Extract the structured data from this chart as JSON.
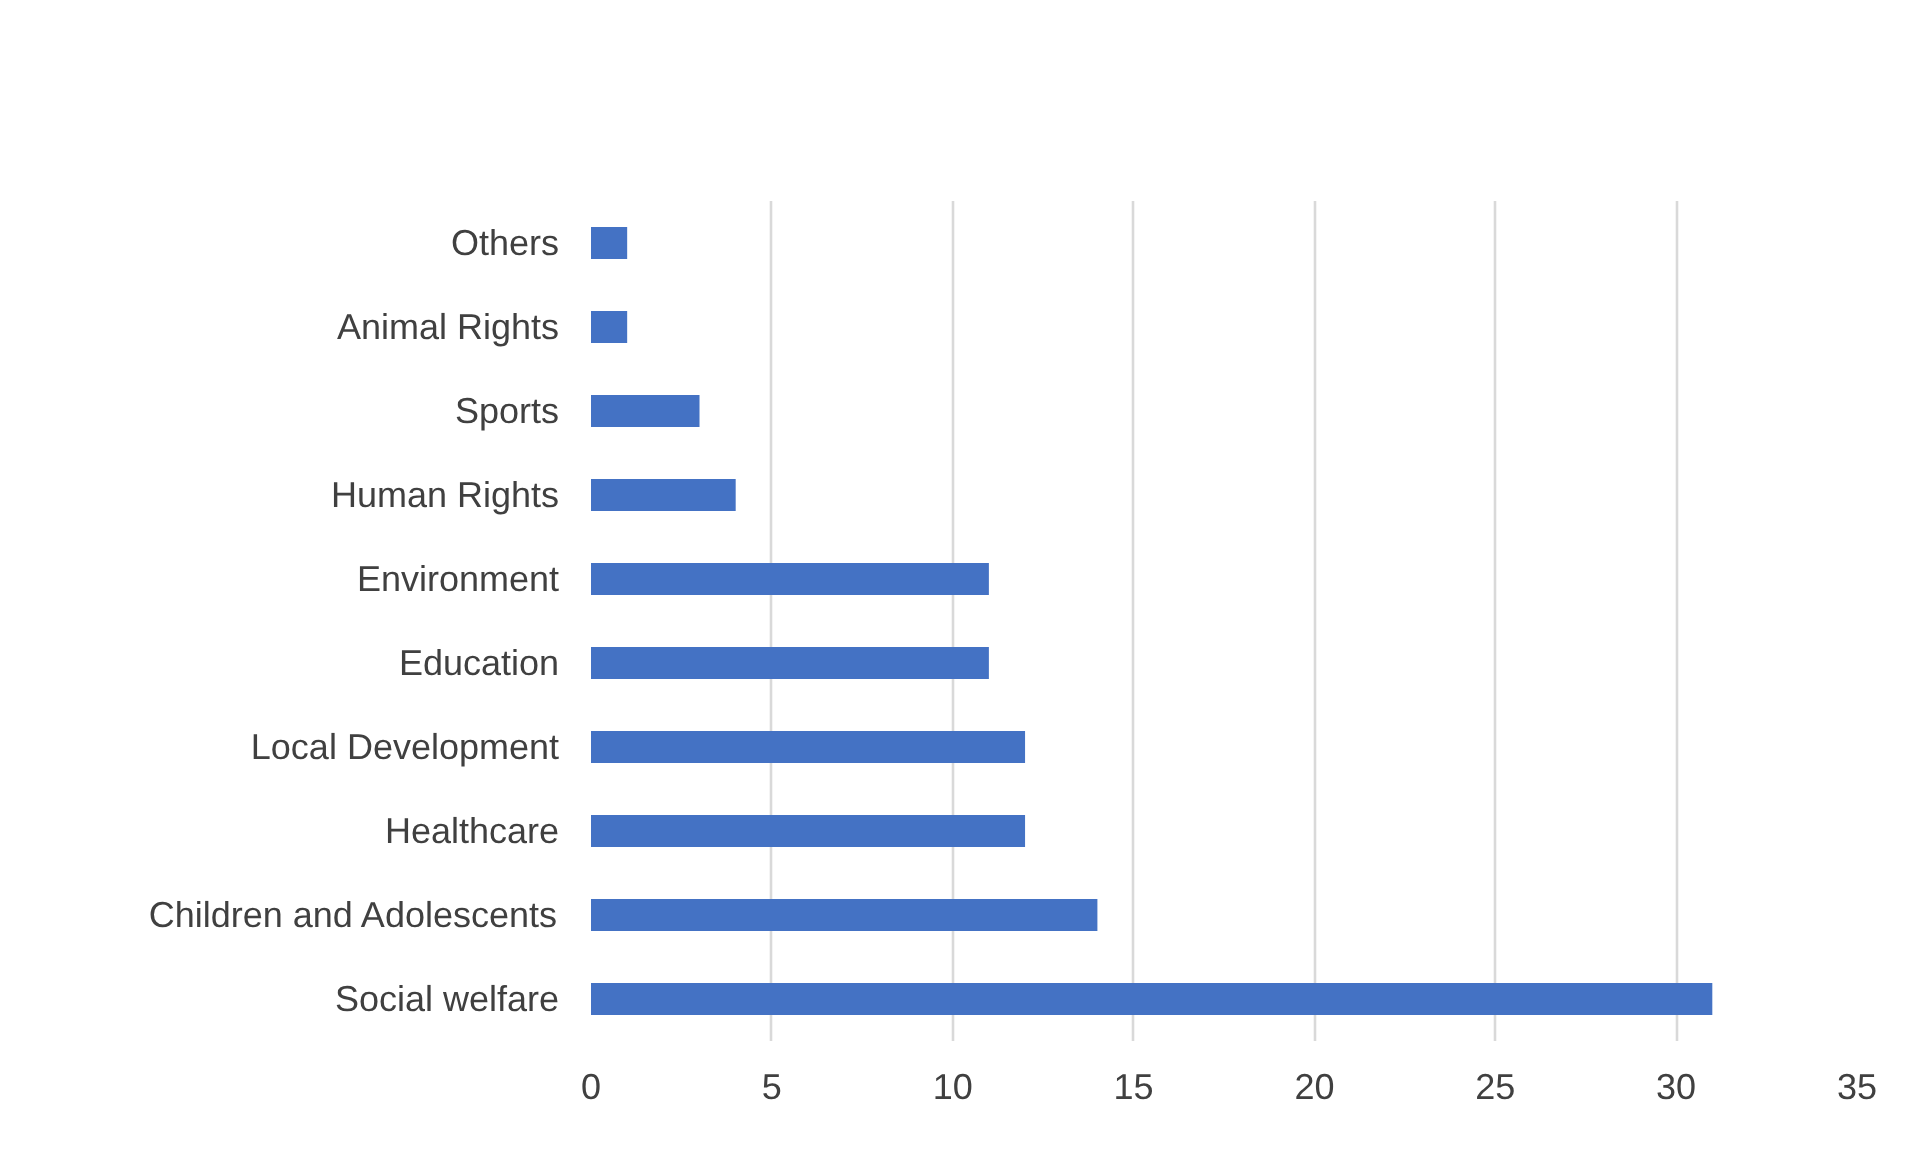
{
  "chart_data": {
    "type": "bar",
    "orientation": "horizontal",
    "categories": [
      "Others",
      "Animal Rights",
      "Sports",
      "Human Rights",
      "Environment",
      "Education",
      "Local Development",
      "Healthcare",
      "Children and Adolescents",
      "Social welfare"
    ],
    "values": [
      1,
      1,
      3,
      4,
      11,
      11,
      12,
      12,
      14,
      31
    ],
    "color": "#4472c4",
    "xlim": [
      0,
      35
    ],
    "xticks": [
      0,
      5,
      10,
      15,
      20,
      25,
      30,
      35
    ],
    "grid": "x"
  }
}
